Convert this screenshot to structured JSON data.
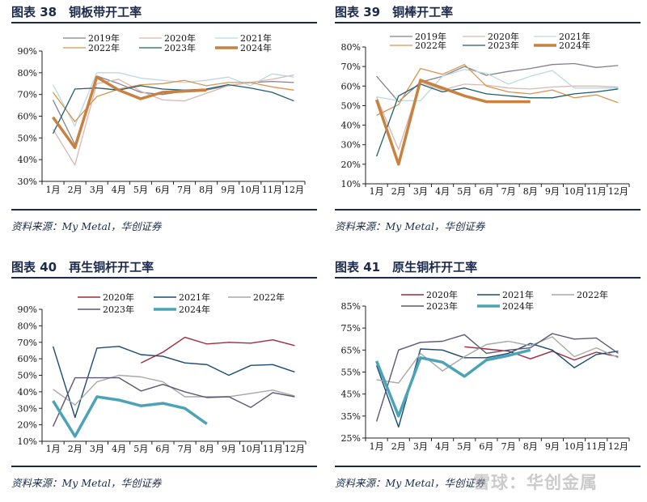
{
  "months": [
    "1月",
    "2月",
    "3月",
    "4月",
    "5月",
    "6月",
    "7月",
    "8月",
    "9月",
    "10月",
    "11月",
    "12月"
  ],
  "watermark": "雪球：华创金属",
  "chart_data": [
    {
      "type": "line",
      "title": "图表 38　铜板带开工率",
      "source": "资料来源：My Metal，华创证券",
      "ylim": [
        30,
        90
      ],
      "ystep": 10,
      "yunit": "%",
      "grid": false,
      "legend": "top",
      "series": [
        {
          "name": "2019年",
          "color": "#85808f",
          "width": 1.3,
          "values": [
            67.5,
            47,
            78.5,
            75,
            71,
            70,
            71.5,
            72,
            74,
            75.5,
            76,
            75.5
          ]
        },
        {
          "name": "2020年",
          "color": "#dbb7b2",
          "width": 1.3,
          "values": [
            54,
            37.5,
            75,
            77,
            71.5,
            67.5,
            67,
            70.5,
            74,
            75.5,
            77,
            79
          ]
        },
        {
          "name": "2021年",
          "color": "#bcd8e2",
          "width": 1.3,
          "values": [
            74.5,
            55.5,
            80,
            80,
            77.5,
            76.5,
            75.5,
            76.5,
            78,
            74,
            79.5,
            78
          ]
        },
        {
          "name": "2022年",
          "color": "#d9944c",
          "width": 1.3,
          "values": [
            71,
            57.5,
            69,
            72.5,
            74.5,
            75,
            76.5,
            74,
            75.5,
            75.5,
            73.5,
            72
          ]
        },
        {
          "name": "2023年",
          "color": "#1f5d6c",
          "width": 1.3,
          "values": [
            52,
            72.5,
            73,
            72,
            74,
            72.5,
            72,
            72.5,
            74.5,
            73,
            71,
            67
          ]
        },
        {
          "name": "2024年",
          "color": "#c8813f",
          "width": 3.5,
          "values": [
            59.5,
            45.5,
            78,
            72,
            68,
            71,
            71.5,
            72,
            null,
            null,
            null,
            null
          ]
        }
      ]
    },
    {
      "type": "line",
      "title": "图表 39　铜棒开工率",
      "source": "资料来源：My Metal，华创证券",
      "ylim": [
        10,
        80
      ],
      "ystep": 10,
      "yunit": "%",
      "grid": false,
      "legend": "top",
      "series": [
        {
          "name": "2019年",
          "color": "#85808f",
          "width": 1.3,
          "values": [
            65,
            52,
            62,
            65,
            70,
            65.5,
            67.5,
            69,
            71,
            71.5,
            69.5,
            70.5
          ]
        },
        {
          "name": "2020年",
          "color": "#dbb7b2",
          "width": 1.3,
          "values": [
            54.5,
            27.5,
            62,
            58,
            61,
            60.5,
            59,
            58.5,
            59.5,
            60,
            60,
            59.5
          ]
        },
        {
          "name": "2021年",
          "color": "#bcd8e2",
          "width": 1.3,
          "values": [
            54.5,
            52.5,
            52.5,
            65,
            68.5,
            66.5,
            61,
            65,
            68,
            59,
            59,
            59
          ]
        },
        {
          "name": "2022年",
          "color": "#d9944c",
          "width": 1.3,
          "values": [
            45,
            50.5,
            69,
            66,
            71,
            60,
            57,
            56,
            58,
            54,
            55.5,
            51.5
          ]
        },
        {
          "name": "2023年",
          "color": "#1f5d6c",
          "width": 1.3,
          "values": [
            24,
            55,
            61,
            57,
            59,
            56,
            55,
            54,
            54,
            56,
            57,
            58.5
          ]
        },
        {
          "name": "2024年",
          "color": "#c8813f",
          "width": 3.5,
          "values": [
            53,
            20,
            63,
            59,
            55,
            52,
            52,
            52,
            null,
            null,
            null,
            null
          ]
        }
      ]
    },
    {
      "type": "line",
      "title": "图表 40　再生铜杆开工率",
      "source": "资料来源：My Metal，华创证券",
      "ylim": [
        10,
        90
      ],
      "ystep": 10,
      "yunit": "%",
      "grid": false,
      "legend": "top",
      "series": [
        {
          "name": "2020年",
          "color": "#a12a3c",
          "width": 1.4,
          "values": [
            null,
            null,
            null,
            null,
            57.5,
            64,
            73,
            69,
            70,
            69.5,
            71.5,
            68
          ]
        },
        {
          "name": "2021年",
          "color": "#1a4a72",
          "width": 1.4,
          "values": [
            67.5,
            24.5,
            66.5,
            67.5,
            62.5,
            61.5,
            57.5,
            56.5,
            50,
            56,
            56.5,
            52
          ]
        },
        {
          "name": "2022年",
          "color": "#a8a8a8",
          "width": 1.4,
          "values": [
            41.5,
            32,
            46,
            50,
            49,
            46,
            37,
            37,
            37,
            39,
            41,
            37.5
          ]
        },
        {
          "name": "2023年",
          "color": "#5f5672",
          "width": 1.4,
          "values": [
            19,
            48.5,
            48.5,
            48.5,
            40.5,
            44.5,
            40,
            36.5,
            37,
            30.5,
            39.5,
            37
          ]
        },
        {
          "name": "2024年",
          "color": "#4ba3b6",
          "width": 3.5,
          "values": [
            34.5,
            13,
            37,
            35,
            31.5,
            33,
            30,
            20.5,
            null,
            null,
            null,
            null
          ]
        }
      ]
    },
    {
      "type": "line",
      "title": "图表 41　原生铜杆开工率",
      "source": "资料来源：My Metal，华创证券",
      "ylim": [
        25,
        85
      ],
      "ystep": 10,
      "yunit": "%",
      "grid": false,
      "legend": "top",
      "series": [
        {
          "name": "2020年",
          "color": "#a12a3c",
          "width": 1.4,
          "values": [
            null,
            null,
            null,
            null,
            66.5,
            65.5,
            64.5,
            61,
            64.5,
            60.5,
            64,
            62
          ]
        },
        {
          "name": "2021年",
          "color": "#1a4a72",
          "width": 1.4,
          "values": [
            58,
            30,
            65.5,
            65,
            61.5,
            61.5,
            63.5,
            68,
            65,
            57,
            63,
            64.5
          ]
        },
        {
          "name": "2022年",
          "color": "#a8a8a8",
          "width": 1.4,
          "values": [
            51.5,
            50,
            63.5,
            55.5,
            62,
            67.5,
            69,
            67,
            71,
            62,
            66,
            61.5
          ]
        },
        {
          "name": "2023年",
          "color": "#5f5672",
          "width": 1.4,
          "values": [
            32.5,
            65,
            68.5,
            69,
            72,
            63.5,
            65,
            66,
            72.5,
            70,
            70.5,
            63.5
          ]
        },
        {
          "name": "2024年",
          "color": "#4ba3b6",
          "width": 3.5,
          "values": [
            60,
            35,
            61.5,
            59.5,
            53,
            60.5,
            62.5,
            65,
            null,
            null,
            null,
            null
          ]
        }
      ]
    }
  ]
}
